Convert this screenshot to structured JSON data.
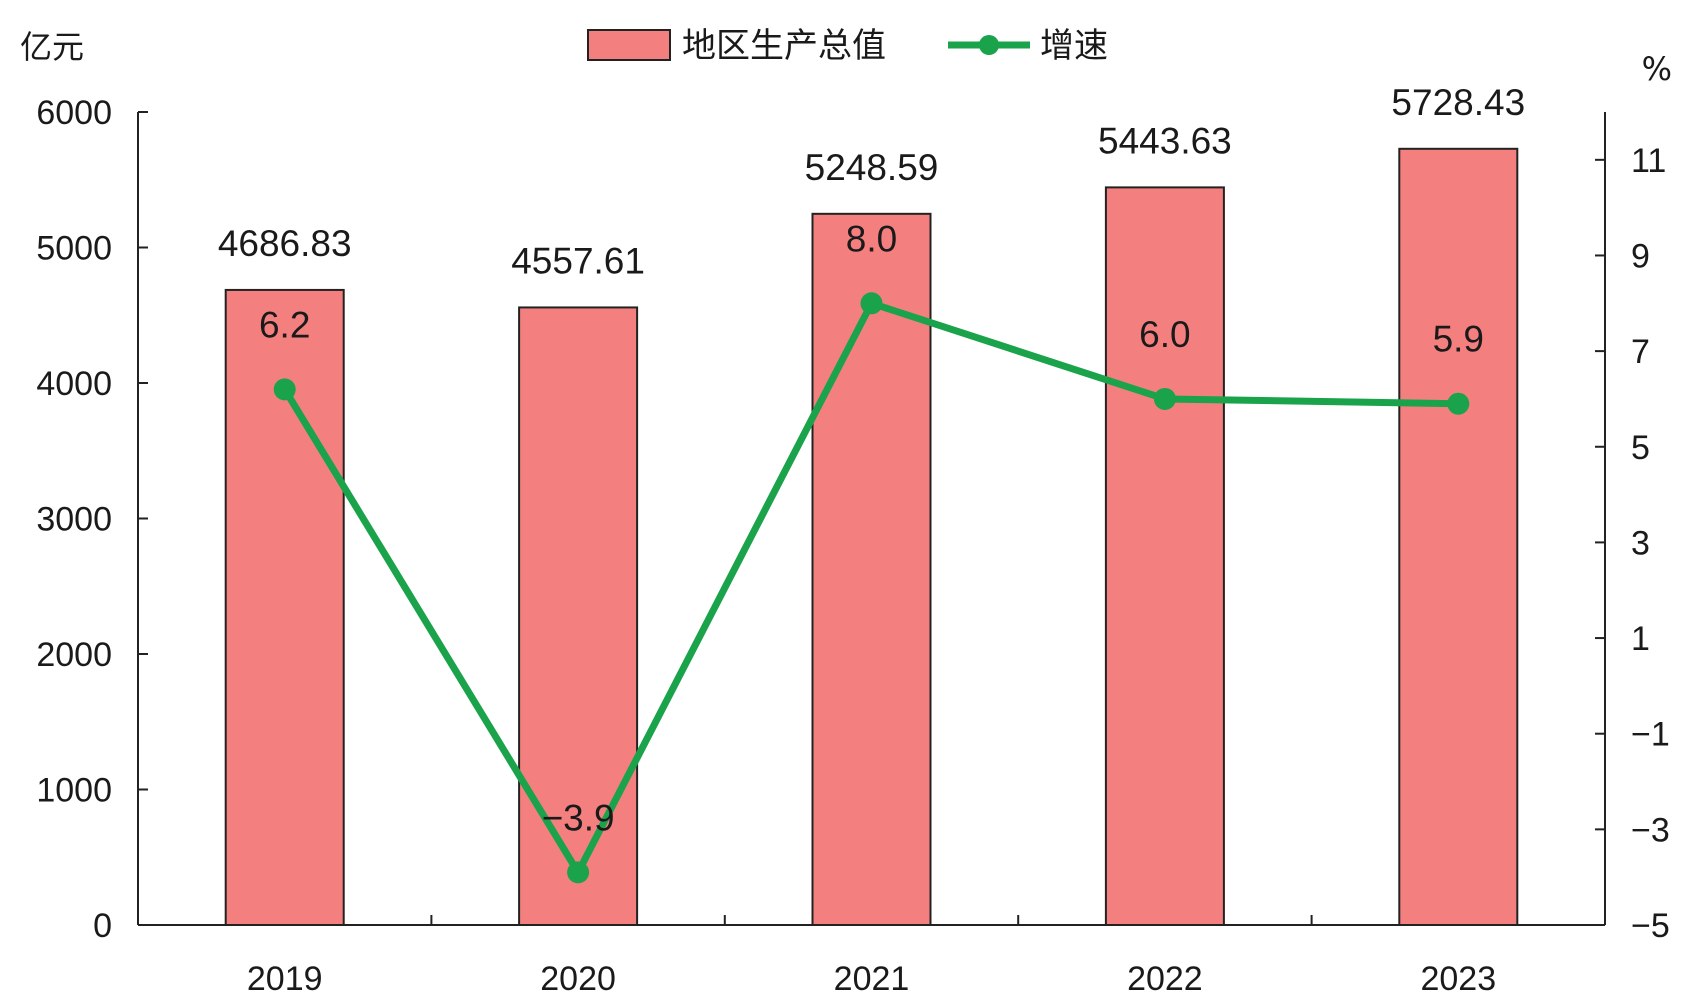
{
  "chart_data": {
    "type": "bar",
    "categories": [
      "2019",
      "2020",
      "2021",
      "2022",
      "2023"
    ],
    "series": [
      {
        "name": "地区生产总值",
        "type": "bar",
        "axis": "left",
        "values": [
          4686.83,
          4557.61,
          5248.59,
          5443.63,
          5728.43
        ],
        "labels": [
          "4686.83",
          "4557.61",
          "5248.59",
          "5443.63",
          "5728.43"
        ],
        "color": "#f47f7f"
      },
      {
        "name": "增速",
        "type": "line",
        "axis": "right",
        "values": [
          6.2,
          -3.9,
          8.0,
          6.0,
          5.9
        ],
        "labels": [
          "6.2",
          "−3.9",
          "8.0",
          "6.0",
          "5.9"
        ],
        "color": "#1aa34a"
      }
    ],
    "left_axis": {
      "unit": "亿元",
      "range": [
        0,
        6000
      ],
      "ticks": [
        0,
        1000,
        2000,
        3000,
        4000,
        5000,
        6000
      ],
      "tick_labels": [
        "0",
        "1000",
        "2000",
        "3000",
        "4000",
        "5000",
        "6000"
      ]
    },
    "right_axis": {
      "unit": "%",
      "range": [
        -5,
        12
      ],
      "ticks": [
        -5,
        -3,
        -1,
        1,
        3,
        5,
        7,
        9,
        11
      ],
      "tick_labels": [
        "−5",
        "−3",
        "−1",
        "1",
        "3",
        "5",
        "7",
        "9",
        "11"
      ]
    },
    "legend_position": "top-center",
    "grid": false
  }
}
